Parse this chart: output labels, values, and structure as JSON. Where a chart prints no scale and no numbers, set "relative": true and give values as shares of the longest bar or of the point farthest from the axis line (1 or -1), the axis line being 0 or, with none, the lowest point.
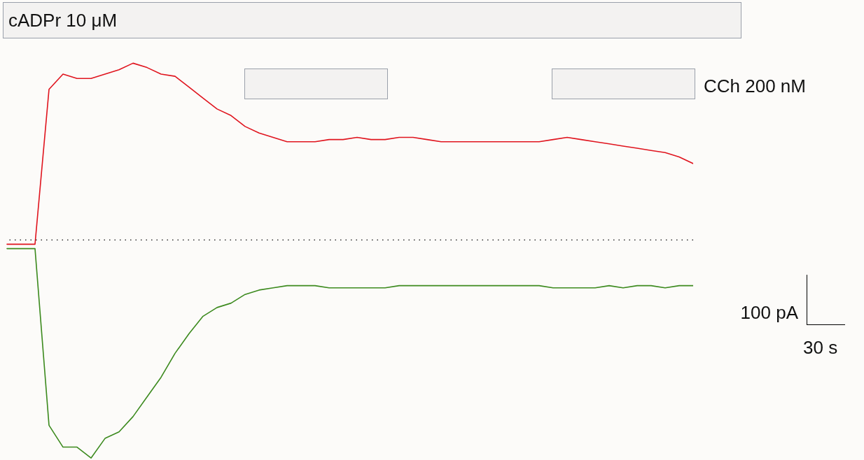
{
  "chart_data": {
    "type": "line",
    "relative": true,
    "categories": [
      null,
      null,
      null,
      null,
      null,
      null,
      null,
      null,
      null,
      null,
      null,
      null,
      null,
      null,
      null,
      null,
      null,
      null,
      null,
      null,
      null,
      null,
      null,
      null,
      null,
      null,
      null,
      null,
      null,
      null,
      null,
      null,
      null,
      null,
      null,
      null,
      null,
      null,
      null,
      null,
      null,
      null,
      null,
      null,
      null,
      null,
      null,
      null,
      null,
      null
    ],
    "series": [
      {
        "color": "#e0141e",
        "values": [
          -0.02,
          -0.02,
          -0.02,
          0.69,
          0.76,
          0.74,
          0.74,
          0.76,
          0.78,
          0.81,
          0.79,
          0.76,
          0.75,
          0.7,
          0.65,
          0.6,
          0.57,
          0.52,
          0.49,
          0.47,
          0.45,
          0.45,
          0.45,
          0.46,
          0.46,
          0.47,
          0.46,
          0.46,
          0.47,
          0.47,
          0.46,
          0.45,
          0.45,
          0.45,
          0.45,
          0.45,
          0.45,
          0.45,
          0.45,
          0.46,
          0.47,
          0.46,
          0.45,
          0.44,
          0.43,
          0.42,
          0.41,
          0.4,
          0.38,
          0.35
        ]
      },
      {
        "color": "#3c8a1e",
        "values": [
          -0.04,
          -0.04,
          -0.04,
          -0.85,
          -0.95,
          -0.95,
          -1,
          -0.91,
          -0.88,
          -0.81,
          -0.72,
          -0.63,
          -0.52,
          -0.43,
          -0.35,
          -0.31,
          -0.29,
          -0.25,
          -0.23,
          -0.22,
          -0.21,
          -0.21,
          -0.21,
          -0.22,
          -0.22,
          -0.22,
          -0.22,
          -0.22,
          -0.21,
          -0.21,
          -0.21,
          -0.21,
          -0.21,
          -0.21,
          -0.21,
          -0.21,
          -0.21,
          -0.21,
          -0.21,
          -0.22,
          -0.22,
          -0.22,
          -0.22,
          -0.21,
          -0.22,
          -0.21,
          -0.21,
          -0.22,
          -0.21,
          -0.21
        ]
      }
    ],
    "ref_lines": [
      {
        "axis": "y",
        "value": 0,
        "line_style": "dotted",
        "color": "#333333"
      }
    ],
    "annotations": [
      "cADPr 10 μM",
      "CCh 200 nM",
      "100 pA",
      "30 s"
    ]
  }
}
